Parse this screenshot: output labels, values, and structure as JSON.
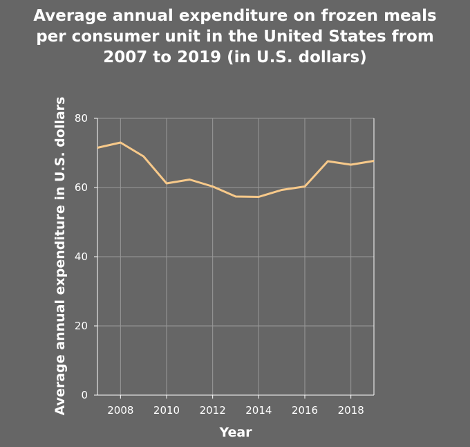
{
  "chart_data": {
    "type": "line",
    "title_lines": [
      "Average annual expenditure on frozen meals",
      "per consumer unit in the United States from",
      "2007 to 2019 (in U.S. dollars)"
    ],
    "xlabel": "Year",
    "ylabel": "Average annual expenditure in U.S. dollars",
    "xlim": [
      2007,
      2019
    ],
    "ylim": [
      0,
      80
    ],
    "xticks": [
      2008,
      2010,
      2012,
      2014,
      2016,
      2018
    ],
    "yticks": [
      0,
      20,
      40,
      60,
      80
    ],
    "grid": true,
    "x": [
      2007,
      2008,
      2009,
      2010,
      2011,
      2012,
      2013,
      2014,
      2015,
      2016,
      2017,
      2018,
      2019
    ],
    "series": [
      {
        "values": [
          71.5,
          73.0,
          69.0,
          61.2,
          62.3,
          60.3,
          57.4,
          57.3,
          59.3,
          60.3,
          67.6,
          66.6,
          67.7
        ]
      }
    ],
    "colors": {
      "background": "#666666",
      "grid": "#999999",
      "axis": "#ffffff",
      "line": "#f7c98a",
      "text": "#ffffff"
    }
  }
}
